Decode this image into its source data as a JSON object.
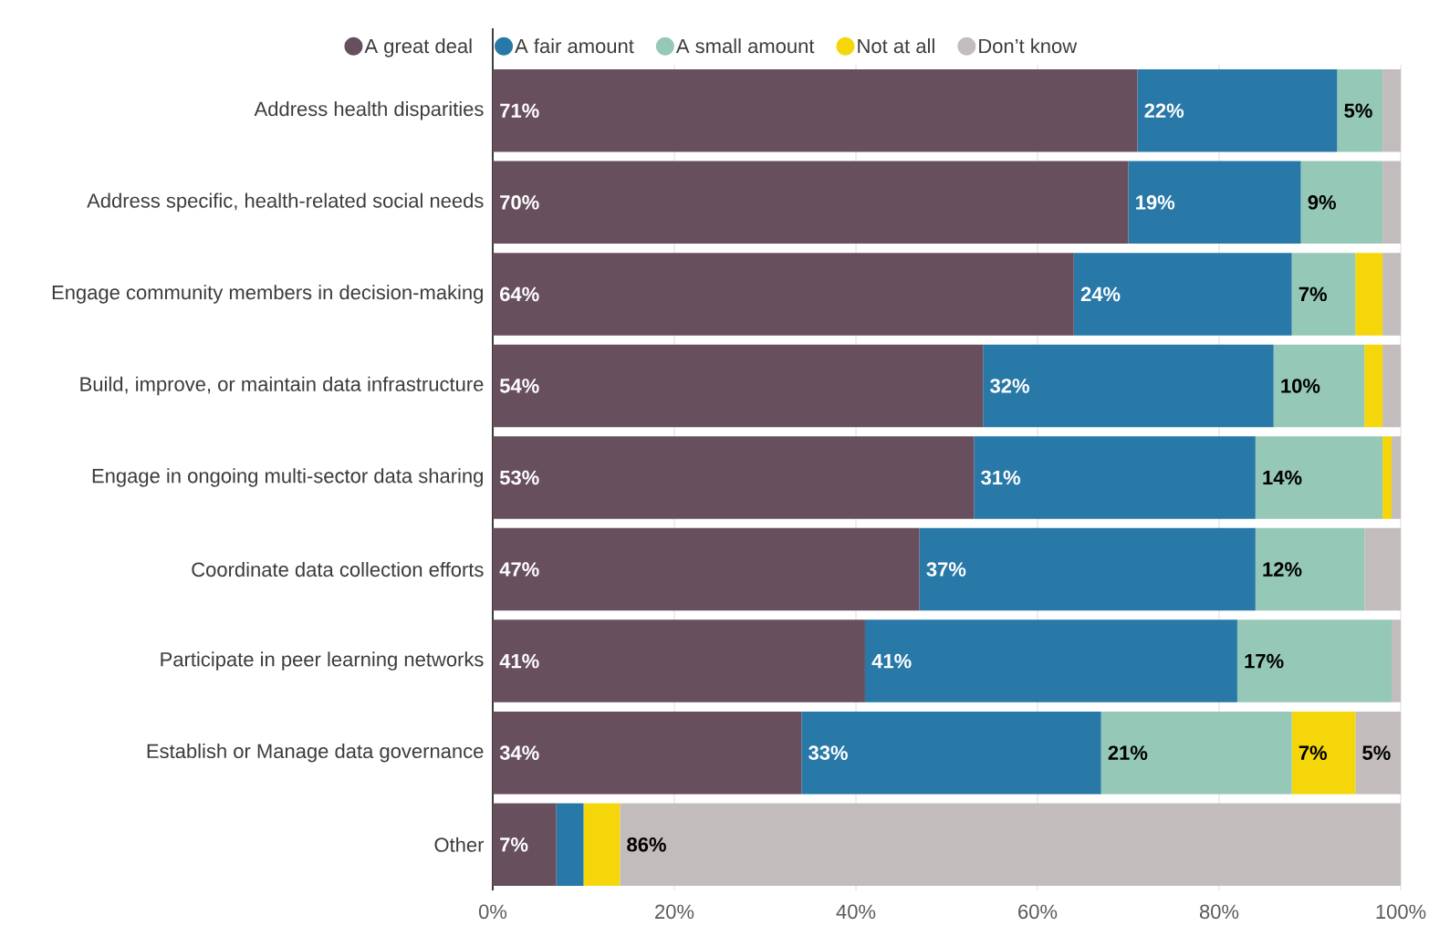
{
  "chart_data": {
    "type": "bar",
    "orientation": "horizontal",
    "stacked": true,
    "categories": [
      "Address health disparities",
      "Address specific, health-related social needs",
      "Engage community members in decision-making",
      "Build, improve, or maintain data infrastructure",
      "Engage in ongoing multi-sector data sharing",
      "Coordinate data collection efforts",
      "Participate in peer learning networks",
      "Establish or Manage data governance",
      "Other"
    ],
    "series": [
      {
        "name": "A great deal",
        "color": "#684f5e",
        "values": [
          71,
          70,
          64,
          54,
          53,
          47,
          41,
          34,
          7
        ],
        "value_labels": [
          "71%",
          "70%",
          "64%",
          "54%",
          "53%",
          "47%",
          "41%",
          "34%",
          "7%"
        ]
      },
      {
        "name": "A fair amount",
        "color": "#2878a8",
        "values": [
          22,
          19,
          24,
          32,
          31,
          37,
          41,
          33,
          3
        ],
        "value_labels": [
          "22%",
          "19%",
          "24%",
          "32%",
          "31%",
          "37%",
          "41%",
          "33%",
          null
        ]
      },
      {
        "name": "A small amount",
        "color": "#96c8b7",
        "values": [
          5,
          9,
          7,
          10,
          14,
          12,
          17,
          21,
          0
        ],
        "value_labels": [
          "5%",
          "9%",
          "7%",
          "10%",
          "14%",
          "12%",
          "17%",
          "21%",
          null
        ]
      },
      {
        "name": "Not at all",
        "color": "#f5d60a",
        "values": [
          0,
          0,
          3,
          2,
          1,
          0,
          0,
          7,
          4
        ],
        "value_labels": [
          null,
          null,
          null,
          null,
          null,
          null,
          null,
          "7%",
          null
        ]
      },
      {
        "name": "Don’t know",
        "color": "#c2bdbc",
        "values": [
          2,
          2,
          2,
          2,
          1,
          4,
          1,
          5,
          86
        ],
        "value_labels": [
          null,
          null,
          null,
          null,
          null,
          null,
          null,
          "5%",
          "86%"
        ]
      }
    ],
    "xlim": [
      0,
      100
    ],
    "xticks": [
      {
        "value": 0,
        "label": "0%"
      },
      {
        "value": 20,
        "label": "20%"
      },
      {
        "value": 40,
        "label": "40%"
      },
      {
        "value": 60,
        "label": "60%"
      },
      {
        "value": 80,
        "label": "80%"
      },
      {
        "value": 100,
        "label": "100%"
      }
    ],
    "grid": "x",
    "legend": "top"
  }
}
